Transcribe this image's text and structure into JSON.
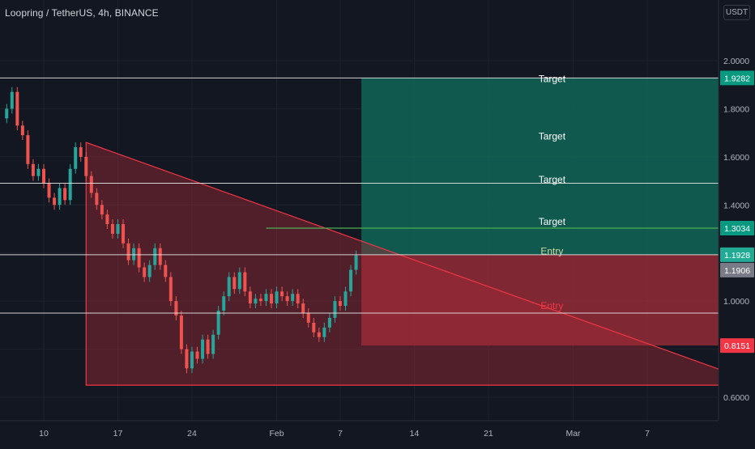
{
  "header": {
    "symbol_title": "Loopring / TetherUS, 4h, BINANCE",
    "currency": "USDT"
  },
  "colors": {
    "background": "#131722",
    "grid": "#1e222d",
    "axis_text": "#b2b5be",
    "candle_up": "#26a69a",
    "candle_down": "#ef5350",
    "triangle_line": "#f23645",
    "triangle_fill": "#a52a37",
    "target_zone": "#0f5f52",
    "stop_zone": "#8e2a35",
    "horizontal_line": "#e6e6e6",
    "target_level_line": "#4caf50",
    "badge_target": "#089981",
    "badge_entry": "#22ab94",
    "badge_current": "#787b86",
    "badge_stop": "#f23645"
  },
  "chart_data": {
    "type": "candlestick",
    "pair": "LRC/USDT",
    "interval": "4h",
    "exchange": "BINANCE",
    "y_axis": {
      "ticks": [
        2.0,
        1.8,
        1.6,
        1.4,
        1.2,
        1.0,
        0.8,
        0.6
      ],
      "tick_labels": [
        "2.0000",
        "1.8000",
        "1.6000",
        "1.4000",
        "1.2000",
        "1.0000",
        "0.8000",
        "0.6000"
      ],
      "ylim": [
        0.55,
        2.2
      ]
    },
    "x_axis": {
      "tick_labels": [
        "10",
        "17",
        "24",
        "Feb",
        "7",
        "14",
        "21",
        "Mar",
        "7"
      ],
      "tick_days": [
        9,
        16,
        23,
        31,
        37,
        44,
        51,
        59,
        66
      ],
      "xlim": [
        4.5,
        79.5
      ]
    },
    "candles_close_path": [
      [
        5.5,
        1.8,
        "up"
      ],
      [
        6.0,
        1.87,
        "up"
      ],
      [
        6.5,
        1.73,
        "down"
      ],
      [
        7.0,
        1.69,
        "down"
      ],
      [
        7.5,
        1.57,
        "down"
      ],
      [
        8.0,
        1.52,
        "down"
      ],
      [
        8.5,
        1.55,
        "up"
      ],
      [
        9.0,
        1.49,
        "down"
      ],
      [
        9.5,
        1.43,
        "down"
      ],
      [
        10.0,
        1.4,
        "down"
      ],
      [
        10.5,
        1.47,
        "up"
      ],
      [
        11.0,
        1.42,
        "down"
      ],
      [
        11.5,
        1.55,
        "up"
      ],
      [
        12.0,
        1.64,
        "up"
      ],
      [
        12.5,
        1.6,
        "down"
      ],
      [
        13.0,
        1.52,
        "down"
      ],
      [
        13.5,
        1.45,
        "down"
      ],
      [
        14.0,
        1.4,
        "down"
      ],
      [
        14.5,
        1.36,
        "down"
      ],
      [
        15.0,
        1.32,
        "down"
      ],
      [
        15.5,
        1.28,
        "down"
      ],
      [
        16.0,
        1.32,
        "up"
      ],
      [
        16.5,
        1.24,
        "down"
      ],
      [
        17.0,
        1.17,
        "down"
      ],
      [
        17.5,
        1.22,
        "up"
      ],
      [
        18.0,
        1.14,
        "down"
      ],
      [
        18.5,
        1.1,
        "down"
      ],
      [
        19.0,
        1.15,
        "up"
      ],
      [
        19.5,
        1.22,
        "up"
      ],
      [
        20.0,
        1.15,
        "down"
      ],
      [
        20.5,
        1.1,
        "down"
      ],
      [
        21.0,
        1.0,
        "down"
      ],
      [
        21.5,
        0.94,
        "down"
      ],
      [
        22.0,
        0.8,
        "down"
      ],
      [
        22.5,
        0.72,
        "down"
      ],
      [
        23.0,
        0.79,
        "up"
      ],
      [
        23.5,
        0.76,
        "down"
      ],
      [
        24.0,
        0.84,
        "up"
      ],
      [
        24.5,
        0.78,
        "down"
      ],
      [
        25.0,
        0.86,
        "up"
      ],
      [
        25.5,
        0.96,
        "up"
      ],
      [
        26.0,
        1.02,
        "up"
      ],
      [
        26.5,
        1.1,
        "up"
      ],
      [
        27.0,
        1.05,
        "down"
      ],
      [
        27.5,
        1.12,
        "up"
      ],
      [
        28.0,
        1.04,
        "down"
      ],
      [
        28.5,
        0.99,
        "down"
      ],
      [
        29.0,
        1.01,
        "up"
      ],
      [
        29.5,
        1.0,
        "down"
      ],
      [
        30.0,
        1.03,
        "up"
      ],
      [
        30.5,
        0.99,
        "down"
      ],
      [
        31.0,
        1.04,
        "up"
      ],
      [
        31.5,
        1.02,
        "down"
      ],
      [
        32.0,
        1.0,
        "down"
      ],
      [
        32.5,
        1.03,
        "up"
      ],
      [
        33.0,
        0.99,
        "down"
      ],
      [
        33.5,
        0.95,
        "down"
      ],
      [
        34.0,
        0.91,
        "down"
      ],
      [
        34.5,
        0.87,
        "down"
      ],
      [
        35.0,
        0.85,
        "down"
      ],
      [
        35.5,
        0.89,
        "up"
      ],
      [
        36.0,
        0.93,
        "up"
      ],
      [
        36.5,
        1.0,
        "up"
      ],
      [
        37.0,
        0.98,
        "down"
      ],
      [
        37.5,
        1.04,
        "up"
      ],
      [
        38.0,
        1.13,
        "up"
      ],
      [
        38.5,
        1.19,
        "up"
      ]
    ],
    "drawings": {
      "triangle": {
        "points": [
          [
            13.0,
            1.66
          ],
          [
            77.0,
            0.65
          ],
          [
            13.0,
            0.65
          ]
        ],
        "hypotenuse_start": [
          13.0,
          1.66
        ],
        "hypotenuse_end": [
          77.0,
          0.65
        ]
      },
      "position": {
        "x_start": 39.0,
        "x_end": 84.0,
        "entry": 1.1928,
        "target": 1.9282,
        "stop": 0.8151
      },
      "horizontal_lines": [
        1.9282,
        1.49,
        1.1928,
        0.95
      ],
      "target_level_ray": {
        "price": 1.3034,
        "x_start": 30.0
      },
      "labels": [
        {
          "text": "Target",
          "x": 57.0,
          "y": 1.925,
          "color": "#ffffff"
        },
        {
          "text": "Target",
          "x": 57.0,
          "y": 1.685,
          "color": "#ffffff"
        },
        {
          "text": "Target",
          "x": 57.0,
          "y": 1.505,
          "color": "#ffffff"
        },
        {
          "text": "Target",
          "x": 57.0,
          "y": 1.33,
          "color": "#ffffff"
        },
        {
          "text": "Entry",
          "x": 57.0,
          "y": 1.208,
          "color": "#d1d4a0"
        },
        {
          "text": "Entry",
          "x": 57.0,
          "y": 0.98,
          "color": "#f23645"
        }
      ]
    },
    "price_badges": [
      {
        "label": "1.9282",
        "price": 1.9282,
        "color": "#089981"
      },
      {
        "label": "1.3034",
        "price": 1.3034,
        "color": "#089981"
      },
      {
        "label": "1.1928",
        "price": 1.1928,
        "color": "#22ab94"
      },
      {
        "label": "1.1906",
        "price": 1.1906,
        "color": "#787b86"
      },
      {
        "label": "0.8151",
        "price": 0.8151,
        "color": "#f23645"
      }
    ]
  }
}
